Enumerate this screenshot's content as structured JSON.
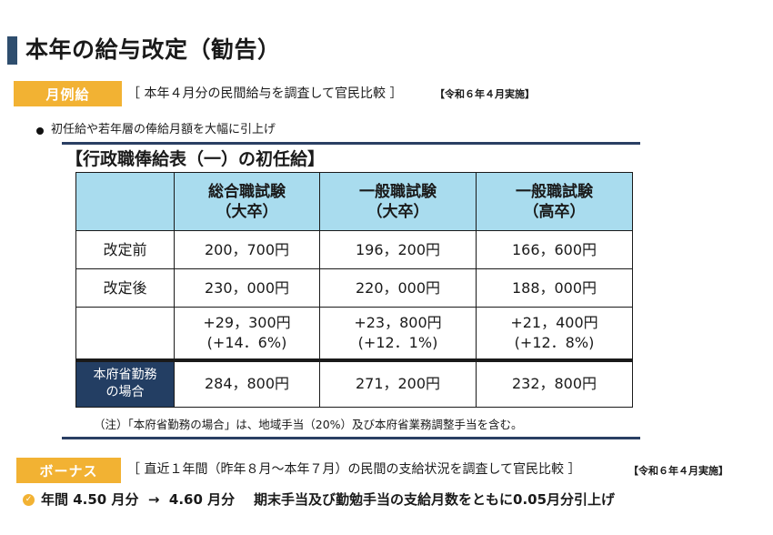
{
  "title": "本年の給与改定（勧告）",
  "monthly": {
    "tag": "月例給",
    "description": "［ 本年４月分の民間給与を調査して官民比較 ］",
    "note": "【令和６年４月実施】",
    "bullet": "初任給や若年層の俸給月額を大幅に引上げ"
  },
  "table": {
    "title": "【行政職俸給表（一）の初任給】",
    "headers": [
      {
        "line1": "総合職試験",
        "line2": "（大卒）"
      },
      {
        "line1": "一般職試験",
        "line2": "（大卒）"
      },
      {
        "line1": "一般職試験",
        "line2": "（高卒）"
      }
    ],
    "rows": [
      {
        "label": "改定前",
        "values": [
          "200，700円",
          "196，200円",
          "166，600円"
        ]
      },
      {
        "label": "改定後",
        "values": [
          "230，000円",
          "220，000円",
          "188，000円"
        ]
      }
    ],
    "diff": [
      {
        "line1": "+29，300円",
        "line2": "(+14．6%)"
      },
      {
        "line1": "+23，800円",
        "line2": "(+12．1%)"
      },
      {
        "line1": "+21，400円",
        "line2": "(+12．8%)"
      }
    ],
    "honfu": {
      "label_line1": "本府省勤務",
      "label_line2": "の場合",
      "values": [
        "284，800円",
        "271，200円",
        "232，800円"
      ]
    },
    "footnote": "（注）「本府省勤務の場合」は、地域手当（20%）及び本府省業務調整手当を含む。"
  },
  "bonus": {
    "tag": "ボーナス",
    "description": "［ 直近１年間（昨年８月～本年７月）の民間の支給状況を調査して官民比較 ］",
    "note": "【令和６年４月実施】",
    "summary": "年間 4.50 月分  →  4.60 月分    期末手当及び勤勉手当の支給月数をともに0.05月分引上げ",
    "icon": "check-circle-icon"
  },
  "colors": {
    "accent": "#f2b233",
    "title_bar": "#2f4e6e",
    "header_bg": "#a9dcee",
    "navy": "#233e63"
  }
}
